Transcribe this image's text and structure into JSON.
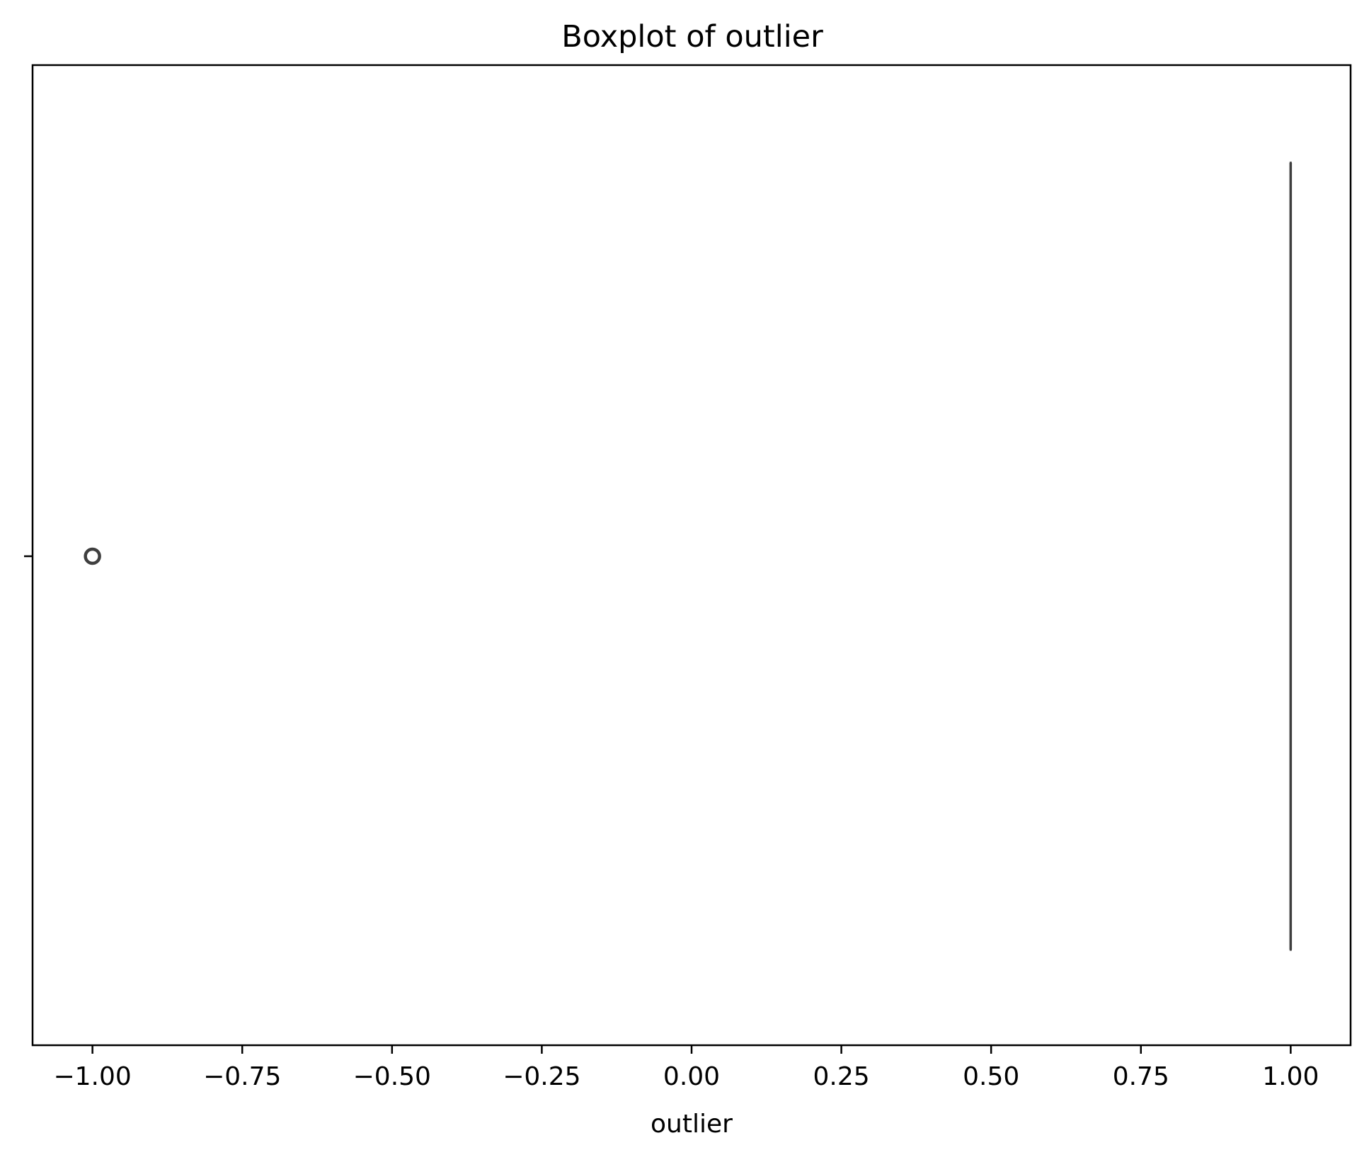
{
  "chart_data": {
    "type": "boxplot",
    "title": "Boxplot of outlier",
    "xlabel": "outlier",
    "ylabel": "",
    "orientation": "horizontal",
    "xlim": [
      -1.1,
      1.1
    ],
    "xticks": [
      -1.0,
      -0.75,
      -0.5,
      -0.25,
      0.0,
      0.25,
      0.5,
      0.75,
      1.0
    ],
    "xtick_labels": [
      "−1.00",
      "−0.75",
      "−0.50",
      "−0.25",
      "0.00",
      "0.25",
      "0.50",
      "0.75",
      "1.00"
    ],
    "grid": false,
    "box": {
      "q1": 1.0,
      "median": 1.0,
      "q3": 1.0,
      "whisker_low": 1.0,
      "whisker_high": 1.0
    },
    "outliers": [
      -1.0
    ],
    "colors": {
      "box_line": "#3f3f3f",
      "axes": "#000000"
    }
  }
}
